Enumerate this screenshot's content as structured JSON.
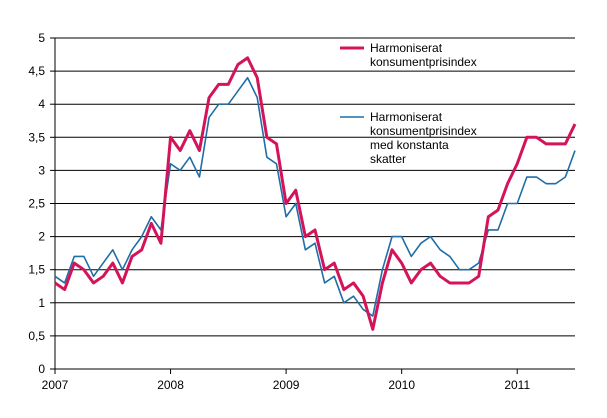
{
  "chart_data": {
    "type": "line",
    "title": "",
    "xlabel": "",
    "ylabel": "",
    "ylim": [
      0,
      5
    ],
    "y_ticks": [
      "0",
      "0,5",
      "1",
      "1,5",
      "2",
      "2,5",
      "3",
      "3,5",
      "4",
      "4,5",
      "5"
    ],
    "x_range": [
      "2007-01",
      "2011-07"
    ],
    "x_ticks": [
      "2007",
      "2008",
      "2009",
      "2010",
      "2011"
    ],
    "grid": "horizontal",
    "legend_position": "top-right",
    "colors": {
      "series1": "#d4145a",
      "series2": "#1f6ea8",
      "grid": "#000000"
    },
    "x": [
      "2007-01",
      "2007-02",
      "2007-03",
      "2007-04",
      "2007-05",
      "2007-06",
      "2007-07",
      "2007-08",
      "2007-09",
      "2007-10",
      "2007-11",
      "2007-12",
      "2008-01",
      "2008-02",
      "2008-03",
      "2008-04",
      "2008-05",
      "2008-06",
      "2008-07",
      "2008-08",
      "2008-09",
      "2008-10",
      "2008-11",
      "2008-12",
      "2009-01",
      "2009-02",
      "2009-03",
      "2009-04",
      "2009-05",
      "2009-06",
      "2009-07",
      "2009-08",
      "2009-09",
      "2009-10",
      "2009-11",
      "2009-12",
      "2010-01",
      "2010-02",
      "2010-03",
      "2010-04",
      "2010-05",
      "2010-06",
      "2010-07",
      "2010-08",
      "2010-09",
      "2010-10",
      "2010-11",
      "2010-12",
      "2011-01",
      "2011-02",
      "2011-03",
      "2011-04",
      "2011-05",
      "2011-06",
      "2011-07"
    ],
    "series": [
      {
        "name": "Harmoniserat konsumentprisindex",
        "name_lines": [
          "Harmoniserat",
          "konsumentprisindex"
        ],
        "values": [
          1.3,
          1.2,
          1.6,
          1.5,
          1.3,
          1.4,
          1.6,
          1.3,
          1.7,
          1.8,
          2.2,
          1.9,
          3.5,
          3.3,
          3.6,
          3.3,
          4.1,
          4.3,
          4.3,
          4.6,
          4.7,
          4.4,
          3.5,
          3.4,
          2.5,
          2.7,
          2.0,
          2.1,
          1.5,
          1.6,
          1.2,
          1.3,
          1.1,
          0.6,
          1.3,
          1.8,
          1.6,
          1.3,
          1.5,
          1.6,
          1.4,
          1.3,
          1.3,
          1.3,
          1.4,
          2.3,
          2.4,
          2.8,
          3.1,
          3.5,
          3.5,
          3.4,
          3.4,
          3.4,
          3.7
        ]
      },
      {
        "name": "Harmoniserat konsumentprisindex med konstanta skatter",
        "name_lines": [
          "Harmoniserat",
          "konsumentprisindex",
          "med konstanta",
          "skatter"
        ],
        "values": [
          1.4,
          1.3,
          1.7,
          1.7,
          1.4,
          1.6,
          1.8,
          1.5,
          1.8,
          2.0,
          2.3,
          2.1,
          3.1,
          3.0,
          3.2,
          2.9,
          3.8,
          4.0,
          4.0,
          4.2,
          4.4,
          4.1,
          3.2,
          3.1,
          2.3,
          2.5,
          1.8,
          1.9,
          1.3,
          1.4,
          1.0,
          1.1,
          0.9,
          0.8,
          1.5,
          2.0,
          2.0,
          1.7,
          1.9,
          2.0,
          1.8,
          1.7,
          1.5,
          1.5,
          1.6,
          2.1,
          2.1,
          2.5,
          2.5,
          2.9,
          2.9,
          2.8,
          2.8,
          2.9,
          3.3
        ]
      }
    ]
  }
}
